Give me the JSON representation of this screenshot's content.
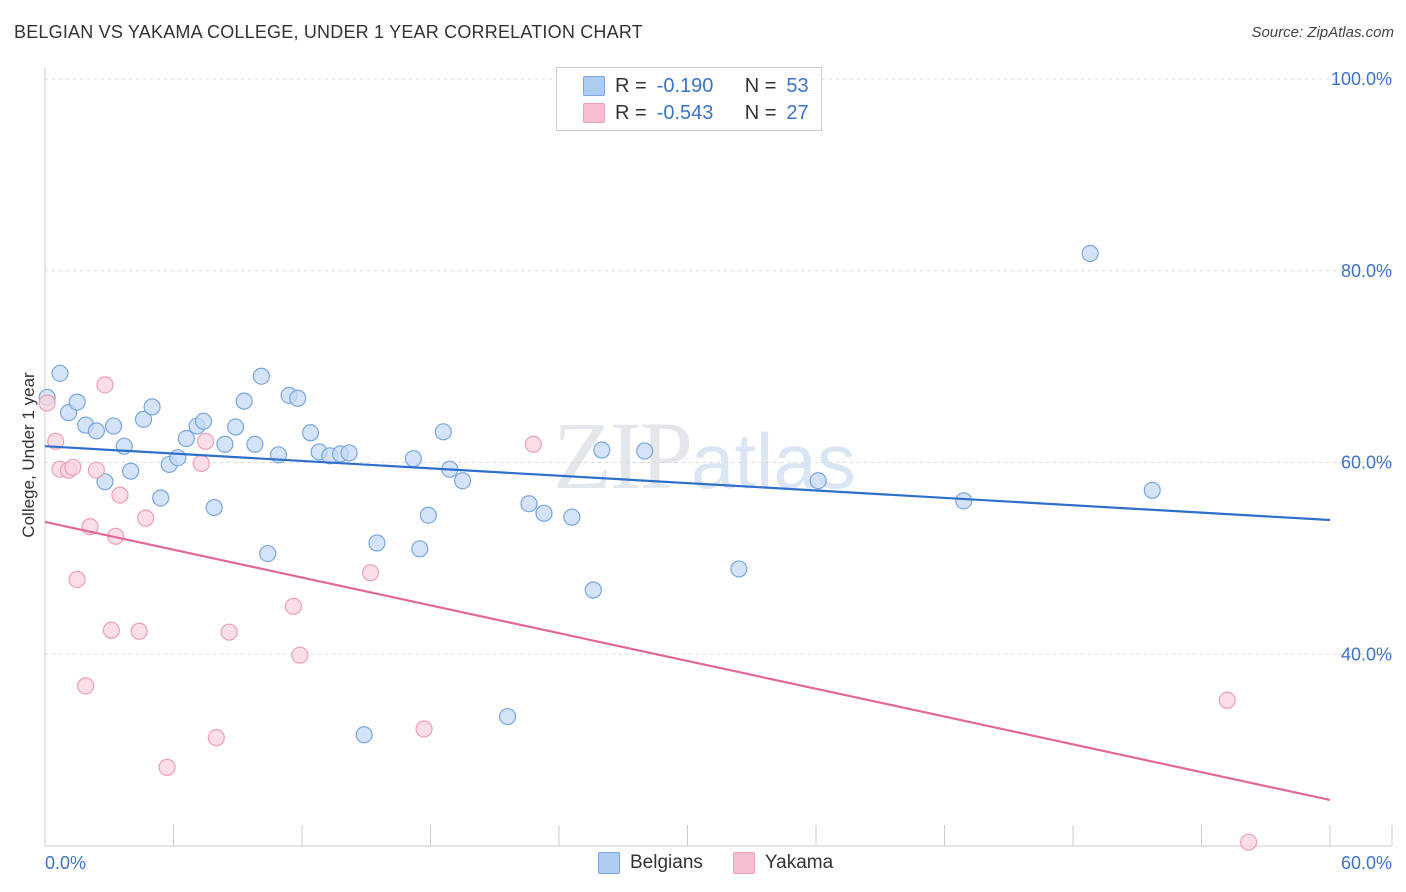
{
  "header": {
    "title": "BELGIAN VS YAKAMA COLLEGE, UNDER 1 YEAR CORRELATION CHART",
    "source": "Source: ZipAtlas.com"
  },
  "watermark": {
    "zip": "ZIP",
    "atlas": "atlas"
  },
  "legend_top": {
    "rows": [
      {
        "r_label": "R =",
        "r_value": "-0.190",
        "n_label": "N =",
        "n_value": "53",
        "color": "#aecbf0"
      },
      {
        "r_label": "R =",
        "r_value": "-0.543",
        "n_label": "N =",
        "n_value": "27",
        "color": "#f6bfd0"
      }
    ]
  },
  "legend_bottom": {
    "items": [
      {
        "label": "Belgians",
        "color": "#aecbf0"
      },
      {
        "label": "Yakama",
        "color": "#f6bfd0"
      }
    ]
  },
  "colors": {
    "blue_point_fill": "#c5d9f4",
    "blue_point_stroke": "#7aa6df",
    "blue_line": "#2f6fcc",
    "pink_point_fill": "#f9d3df",
    "pink_point_stroke": "#ec9fb8",
    "pink_line": "#e2689a",
    "tick_label": "#3a73c8",
    "grid": "#d9d9d9"
  },
  "chart_data": {
    "type": "scatter",
    "title": "BELGIAN VS YAKAMA COLLEGE, UNDER 1 YEAR CORRELATION CHART",
    "xlabel": "",
    "ylabel": "College, Under 1 year",
    "xlim": [
      0,
      60
    ],
    "ylim": [
      20,
      100
    ],
    "x_tick_labels": [
      "0.0%",
      "60.0%"
    ],
    "y_ticks": [
      40,
      60,
      80,
      100
    ],
    "y_tick_labels": [
      "40.0%",
      "60.0%",
      "80.0%",
      "100.0%"
    ],
    "grid": "horizontal dashed",
    "legend_position": "top-center",
    "series": [
      {
        "name": "Belgians",
        "r": -0.19,
        "n": 53,
        "trend": {
          "x": [
            0,
            60
          ],
          "y": [
            61.7,
            54.0
          ]
        },
        "points": [
          [
            0.1,
            66.8
          ],
          [
            0.7,
            69.3
          ],
          [
            1.1,
            65.2
          ],
          [
            1.5,
            66.3
          ],
          [
            1.9,
            63.9
          ],
          [
            2.4,
            63.3
          ],
          [
            2.8,
            58.0
          ],
          [
            3.2,
            63.8
          ],
          [
            3.7,
            61.7
          ],
          [
            4.0,
            59.1
          ],
          [
            4.6,
            64.5
          ],
          [
            5.0,
            65.8
          ],
          [
            5.4,
            56.3
          ],
          [
            5.8,
            59.8
          ],
          [
            6.2,
            60.5
          ],
          [
            6.6,
            62.5
          ],
          [
            7.1,
            63.8
          ],
          [
            7.4,
            64.3
          ],
          [
            7.9,
            55.3
          ],
          [
            8.4,
            61.9
          ],
          [
            8.9,
            63.7
          ],
          [
            9.3,
            66.4
          ],
          [
            9.8,
            61.9
          ],
          [
            10.1,
            69.0
          ],
          [
            10.4,
            50.5
          ],
          [
            10.9,
            60.8
          ],
          [
            11.4,
            67.0
          ],
          [
            11.8,
            66.7
          ],
          [
            12.4,
            63.1
          ],
          [
            12.8,
            61.1
          ],
          [
            13.3,
            60.7
          ],
          [
            13.8,
            60.9
          ],
          [
            14.2,
            61.0
          ],
          [
            14.9,
            31.6
          ],
          [
            15.5,
            51.6
          ],
          [
            17.2,
            60.4
          ],
          [
            17.5,
            51.0
          ],
          [
            17.9,
            54.5
          ],
          [
            18.6,
            63.2
          ],
          [
            18.9,
            59.3
          ],
          [
            19.5,
            58.1
          ],
          [
            21.6,
            33.5
          ],
          [
            22.6,
            55.7
          ],
          [
            23.3,
            54.7
          ],
          [
            24.6,
            54.3
          ],
          [
            25.6,
            46.7
          ],
          [
            26.0,
            61.3
          ],
          [
            28.0,
            61.2
          ],
          [
            32.4,
            48.9
          ],
          [
            36.1,
            58.1
          ],
          [
            42.9,
            56.0
          ],
          [
            48.8,
            81.8
          ],
          [
            51.7,
            57.1
          ]
        ]
      },
      {
        "name": "Yakama",
        "r": -0.543,
        "n": 27,
        "trend": {
          "x": [
            0,
            60
          ],
          "y": [
            53.8,
            24.8
          ]
        },
        "points": [
          [
            0.1,
            66.2
          ],
          [
            0.5,
            62.2
          ],
          [
            0.7,
            59.3
          ],
          [
            1.1,
            59.2
          ],
          [
            1.3,
            59.5
          ],
          [
            1.5,
            47.8
          ],
          [
            1.9,
            36.7
          ],
          [
            2.1,
            53.3
          ],
          [
            2.4,
            59.2
          ],
          [
            3.3,
            52.3
          ],
          [
            2.8,
            68.1
          ],
          [
            3.1,
            42.5
          ],
          [
            3.5,
            56.6
          ],
          [
            4.4,
            42.4
          ],
          [
            4.7,
            54.2
          ],
          [
            5.7,
            28.2
          ],
          [
            7.3,
            59.9
          ],
          [
            7.5,
            62.2
          ],
          [
            8.0,
            31.3
          ],
          [
            8.6,
            42.3
          ],
          [
            11.6,
            45.0
          ],
          [
            11.9,
            39.9
          ],
          [
            15.2,
            48.5
          ],
          [
            17.7,
            32.2
          ],
          [
            22.8,
            61.9
          ],
          [
            55.2,
            35.2
          ],
          [
            56.2,
            20.4
          ]
        ]
      }
    ]
  }
}
